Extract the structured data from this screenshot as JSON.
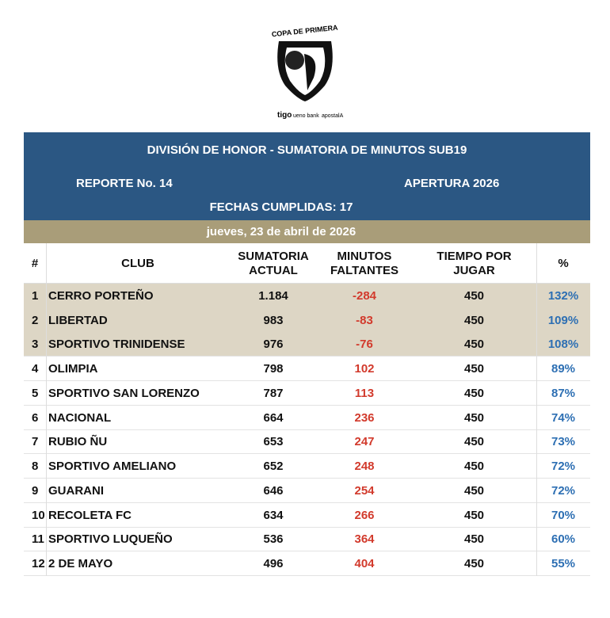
{
  "logo": {
    "title": "COPA DE PRIMERA",
    "sponsors": [
      "tigo",
      "ueno bank",
      "apostalA"
    ]
  },
  "header": {
    "title": "DIVISIÓN DE HONOR - SUMATORIA DE MINUTOS SUB19",
    "report": "REPORTE No. 14",
    "tournament": "APERTURA 2026",
    "matchdays": "FECHAS CUMPLIDAS: 17",
    "date": "jueves, 23 de abril de 2026"
  },
  "table": {
    "columns": [
      "#",
      "CLUB",
      "SUMATORIA ACTUAL",
      "MINUTOS FALTANTES",
      "TIEMPO POR JUGAR",
      "%"
    ],
    "rows": [
      [
        "1",
        "CERRO PORTEÑO",
        "1.184",
        "-284",
        "450",
        "132%"
      ],
      [
        "2",
        "LIBERTAD",
        "983",
        "-83",
        "450",
        "109%"
      ],
      [
        "3",
        "SPORTIVO TRINIDENSE",
        "976",
        "-76",
        "450",
        "108%"
      ],
      [
        "4",
        "OLIMPIA",
        "798",
        "102",
        "450",
        "89%"
      ],
      [
        "5",
        "SPORTIVO SAN LORENZO",
        "787",
        "113",
        "450",
        "87%"
      ],
      [
        "6",
        "NACIONAL",
        "664",
        "236",
        "450",
        "74%"
      ],
      [
        "7",
        "RUBIO ÑU",
        "653",
        "247",
        "450",
        "73%"
      ],
      [
        "8",
        "SPORTIVO AMELIANO",
        "652",
        "248",
        "450",
        "72%"
      ],
      [
        "9",
        "GUARANI",
        "646",
        "254",
        "450",
        "72%"
      ],
      [
        "10",
        "RECOLETA FC",
        "634",
        "266",
        "450",
        "70%"
      ],
      [
        "11",
        "SPORTIVO LUQUEÑO",
        "536",
        "364",
        "450",
        "60%"
      ],
      [
        "12",
        "2 DE MAYO",
        "496",
        "404",
        "450",
        "55%"
      ]
    ]
  }
}
